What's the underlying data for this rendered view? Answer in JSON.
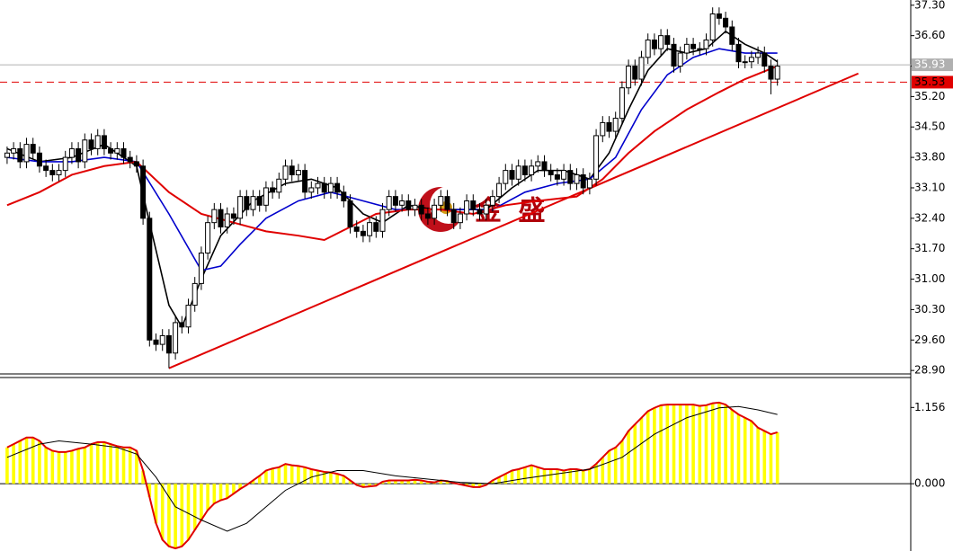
{
  "chart_data": [
    {
      "type": "candlestick",
      "xlim": [
        -1.1,
        139.6
      ],
      "ylim": [
        28.82,
        37.42
      ],
      "yticks": [
        {
          "value": 37.3,
          "label": "37.30"
        },
        {
          "value": 36.6,
          "label": "36.60"
        },
        {
          "value": 35.9,
          "label": "35.90"
        },
        {
          "value": 35.2,
          "label": "35.20"
        },
        {
          "value": 34.5,
          "label": "34.50"
        },
        {
          "value": 33.8,
          "label": "33.80"
        },
        {
          "value": 33.1,
          "label": "33.10"
        },
        {
          "value": 32.4,
          "label": "32.40"
        },
        {
          "value": 31.7,
          "label": "31.70"
        },
        {
          "value": 31,
          "label": "31.00"
        },
        {
          "value": 30.3,
          "label": "30.30"
        },
        {
          "value": 29.6,
          "label": "29.60"
        },
        {
          "value": 28.9,
          "label": "28.90"
        }
      ],
      "up_color": "#ffffff",
      "down_color": "#000000",
      "candles": [
        [
          33.8,
          34.05,
          33.65,
          33.9
        ],
        [
          33.9,
          34.15,
          33.75,
          34.0
        ],
        [
          34.0,
          34.15,
          33.55,
          33.7
        ],
        [
          33.7,
          34.25,
          33.55,
          34.1
        ],
        [
          34.1,
          34.25,
          33.75,
          33.9
        ],
        [
          33.9,
          34.05,
          33.45,
          33.6
        ],
        [
          33.6,
          33.75,
          33.35,
          33.5
        ],
        [
          33.5,
          33.65,
          33.25,
          33.4
        ],
        [
          33.4,
          33.65,
          33.25,
          33.5
        ],
        [
          33.5,
          33.95,
          33.35,
          33.8
        ],
        [
          33.8,
          34.15,
          33.65,
          34.0
        ],
        [
          34.0,
          34.15,
          33.55,
          33.7
        ],
        [
          33.7,
          34.35,
          33.55,
          34.2
        ],
        [
          34.2,
          34.35,
          33.85,
          34.0
        ],
        [
          34.0,
          34.45,
          33.85,
          34.3
        ],
        [
          34.3,
          34.45,
          33.85,
          34.0
        ],
        [
          34.0,
          34.15,
          33.75,
          33.9
        ],
        [
          33.9,
          34.15,
          33.75,
          34.0
        ],
        [
          34.0,
          34.15,
          33.65,
          33.8
        ],
        [
          33.8,
          33.95,
          33.55,
          33.7
        ],
        [
          33.7,
          33.85,
          33.45,
          33.6
        ],
        [
          33.6,
          33.75,
          32.25,
          32.4
        ],
        [
          32.4,
          32.55,
          29.45,
          29.6
        ],
        [
          29.6,
          29.75,
          29.35,
          29.5
        ],
        [
          29.5,
          29.85,
          29.35,
          29.7
        ],
        [
          29.7,
          29.85,
          28.95,
          29.3
        ],
        [
          29.3,
          30.15,
          29.15,
          30.0
        ],
        [
          30.0,
          30.15,
          29.75,
          29.9
        ],
        [
          29.9,
          30.55,
          29.75,
          30.4
        ],
        [
          30.4,
          31.05,
          30.25,
          30.9
        ],
        [
          30.9,
          31.75,
          30.75,
          31.6
        ],
        [
          31.6,
          32.45,
          31.45,
          32.3
        ],
        [
          32.3,
          32.75,
          32.15,
          32.6
        ],
        [
          32.6,
          32.75,
          32.05,
          32.2
        ],
        [
          32.2,
          32.65,
          32.05,
          32.5
        ],
        [
          32.5,
          32.65,
          32.25,
          32.4
        ],
        [
          32.4,
          33.05,
          32.25,
          32.9
        ],
        [
          32.9,
          33.05,
          32.45,
          32.6
        ],
        [
          32.6,
          33.05,
          32.45,
          32.9
        ],
        [
          32.9,
          33.05,
          32.55,
          32.7
        ],
        [
          32.7,
          33.25,
          32.55,
          33.1
        ],
        [
          33.1,
          33.25,
          32.85,
          33.0
        ],
        [
          33.0,
          33.45,
          32.85,
          33.3
        ],
        [
          33.3,
          33.75,
          33.15,
          33.6
        ],
        [
          33.6,
          33.75,
          33.25,
          33.4
        ],
        [
          33.4,
          33.65,
          33.25,
          33.5
        ],
        [
          33.5,
          33.65,
          32.85,
          33.0
        ],
        [
          33.0,
          33.25,
          32.85,
          33.1
        ],
        [
          33.1,
          33.35,
          32.95,
          33.2
        ],
        [
          33.2,
          33.35,
          32.85,
          33.0
        ],
        [
          33.0,
          33.35,
          32.85,
          33.2
        ],
        [
          33.2,
          33.35,
          32.85,
          33.0
        ],
        [
          33.0,
          33.15,
          32.65,
          32.8
        ],
        [
          32.8,
          32.95,
          32.05,
          32.2
        ],
        [
          32.2,
          32.35,
          31.95,
          32.1
        ],
        [
          32.1,
          32.25,
          31.85,
          32.0
        ],
        [
          32.0,
          32.45,
          31.85,
          32.3
        ],
        [
          32.3,
          32.45,
          31.95,
          32.1
        ],
        [
          32.1,
          32.75,
          31.95,
          32.6
        ],
        [
          32.6,
          33.05,
          32.45,
          32.9
        ],
        [
          32.9,
          33.05,
          32.55,
          32.7
        ],
        [
          32.7,
          32.95,
          32.55,
          32.8
        ],
        [
          32.8,
          32.95,
          32.45,
          32.6
        ],
        [
          32.6,
          32.85,
          32.45,
          32.7
        ],
        [
          32.7,
          32.85,
          32.35,
          32.5
        ],
        [
          32.5,
          32.65,
          32.25,
          32.4
        ],
        [
          32.4,
          32.85,
          32.25,
          32.7
        ],
        [
          32.7,
          33.05,
          32.55,
          32.9
        ],
        [
          32.9,
          33.05,
          32.45,
          32.6
        ],
        [
          32.6,
          32.75,
          32.15,
          32.3
        ],
        [
          32.3,
          32.65,
          32.15,
          32.5
        ],
        [
          32.5,
          32.95,
          32.35,
          32.8
        ],
        [
          32.8,
          32.95,
          32.45,
          32.6
        ],
        [
          32.6,
          32.75,
          32.35,
          32.5
        ],
        [
          32.5,
          32.85,
          32.35,
          32.7
        ],
        [
          32.7,
          33.05,
          32.55,
          32.9
        ],
        [
          32.9,
          33.35,
          32.75,
          33.2
        ],
        [
          33.2,
          33.65,
          33.05,
          33.5
        ],
        [
          33.5,
          33.65,
          33.15,
          33.3
        ],
        [
          33.3,
          33.75,
          33.15,
          33.6
        ],
        [
          33.6,
          33.75,
          33.25,
          33.4
        ],
        [
          33.4,
          33.75,
          33.25,
          33.6
        ],
        [
          33.6,
          33.85,
          33.45,
          33.7
        ],
        [
          33.7,
          33.85,
          33.35,
          33.5
        ],
        [
          33.5,
          33.65,
          33.25,
          33.4
        ],
        [
          33.4,
          33.55,
          33.15,
          33.3
        ],
        [
          33.3,
          33.65,
          33.15,
          33.5
        ],
        [
          33.5,
          33.65,
          33.05,
          33.2
        ],
        [
          33.2,
          33.55,
          33.05,
          33.4
        ],
        [
          33.4,
          33.55,
          32.95,
          33.1
        ],
        [
          33.1,
          33.45,
          32.95,
          33.3
        ],
        [
          33.3,
          34.45,
          33.15,
          34.3
        ],
        [
          34.3,
          34.75,
          34.15,
          34.6
        ],
        [
          34.6,
          34.75,
          34.25,
          34.4
        ],
        [
          34.4,
          34.85,
          34.25,
          34.7
        ],
        [
          34.7,
          35.55,
          34.55,
          35.4
        ],
        [
          35.4,
          36.05,
          35.25,
          35.9
        ],
        [
          35.9,
          36.05,
          35.45,
          35.6
        ],
        [
          35.6,
          36.25,
          35.45,
          36.1
        ],
        [
          36.1,
          36.65,
          35.95,
          36.5
        ],
        [
          36.5,
          36.65,
          36.15,
          36.3
        ],
        [
          36.3,
          36.75,
          36.15,
          36.6
        ],
        [
          36.6,
          36.75,
          36.25,
          36.4
        ],
        [
          36.4,
          36.55,
          35.75,
          35.9
        ],
        [
          35.9,
          36.35,
          35.75,
          36.2
        ],
        [
          36.2,
          36.55,
          36.05,
          36.4
        ],
        [
          36.4,
          36.55,
          36.15,
          36.3
        ],
        [
          36.3,
          36.45,
          36.15,
          36.3
        ],
        [
          36.3,
          36.65,
          36.15,
          36.5
        ],
        [
          36.5,
          37.25,
          36.35,
          37.1
        ],
        [
          37.1,
          37.25,
          36.85,
          37.0
        ],
        [
          37.0,
          37.15,
          36.65,
          36.8
        ],
        [
          36.8,
          36.95,
          36.25,
          36.4
        ],
        [
          36.4,
          36.55,
          35.85,
          36.0
        ],
        [
          36.0,
          36.15,
          35.85,
          36.0
        ],
        [
          36.0,
          36.25,
          35.85,
          36.1
        ],
        [
          36.1,
          36.35,
          35.95,
          36.2
        ],
        [
          36.2,
          36.35,
          35.75,
          35.9
        ],
        [
          35.9,
          36.05,
          35.25,
          35.6
        ],
        [
          35.6,
          36.05,
          35.45,
          35.9
        ]
      ],
      "lines": [
        {
          "color": "#000000",
          "x": [
            0,
            5,
            10,
            15,
            20,
            22,
            25,
            27,
            30,
            33,
            38,
            43,
            47,
            51,
            55,
            58,
            62,
            66,
            70,
            74,
            78,
            82,
            86,
            90,
            93,
            96,
            99,
            102,
            105,
            108,
            111,
            114,
            117,
            119
          ],
          "values": [
            34.0,
            33.7,
            33.8,
            34.1,
            33.6,
            32.3,
            30.4,
            29.9,
            31.0,
            32.0,
            32.8,
            33.2,
            33.3,
            33.1,
            32.5,
            32.3,
            32.7,
            32.6,
            32.6,
            32.6,
            33.1,
            33.5,
            33.5,
            33.3,
            33.9,
            34.9,
            35.8,
            36.3,
            36.2,
            36.3,
            36.7,
            36.4,
            36.2,
            36.0
          ]
        },
        {
          "color": "#0000cc",
          "x": [
            0,
            5,
            10,
            15,
            20,
            25,
            30,
            33,
            36,
            40,
            45,
            50,
            55,
            60,
            65,
            70,
            75,
            80,
            85,
            90,
            94,
            98,
            102,
            106,
            110,
            114,
            119
          ],
          "values": [
            33.8,
            33.7,
            33.7,
            33.8,
            33.7,
            32.5,
            31.2,
            31.3,
            31.8,
            32.4,
            32.8,
            33.0,
            32.8,
            32.6,
            32.6,
            32.6,
            32.6,
            33.0,
            33.2,
            33.3,
            33.8,
            34.9,
            35.7,
            36.1,
            36.3,
            36.2,
            36.2
          ]
        },
        {
          "color": "#e00000",
          "x": [
            0,
            5,
            10,
            15,
            20,
            25,
            30,
            35,
            40,
            45,
            49,
            53,
            57,
            62,
            67,
            72,
            77,
            82,
            88,
            92,
            96,
            100,
            105,
            110,
            114,
            119
          ],
          "values": [
            32.7,
            33.0,
            33.4,
            33.6,
            33.7,
            33.0,
            32.5,
            32.3,
            32.1,
            32.0,
            31.9,
            32.2,
            32.5,
            32.6,
            32.6,
            32.5,
            32.7,
            32.8,
            32.9,
            33.3,
            33.9,
            34.4,
            34.9,
            35.3,
            35.6,
            35.9
          ]
        }
      ],
      "trendline": {
        "color": "#e00000",
        "x": [
          25,
          131.5
        ],
        "values": [
          28.95,
          35.73
        ]
      },
      "levels": [
        {
          "value": 35.93,
          "color": "#b0b0b0",
          "text_color": "#ffffff",
          "dashed": false
        },
        {
          "value": 35.53,
          "color": "#e00000",
          "text_color": "#000000",
          "dashed": true
        }
      ],
      "watermark": "金 盛"
    },
    {
      "type": "macd",
      "xlim": [
        -1.1,
        139.6
      ],
      "ylim": [
        -1.02,
        1.61
      ],
      "yticks": [
        1.156,
        {
          "value": 0,
          "label": "0.000"
        }
      ],
      "histogram_color": "#ffff00",
      "outline_color": "#e00000",
      "values": [
        0.55,
        0.6,
        0.65,
        0.7,
        0.7,
        0.65,
        0.55,
        0.5,
        0.48,
        0.48,
        0.5,
        0.53,
        0.55,
        0.6,
        0.63,
        0.63,
        0.6,
        0.57,
        0.55,
        0.55,
        0.5,
        0.2,
        -0.2,
        -0.6,
        -0.85,
        -0.95,
        -0.98,
        -0.95,
        -0.85,
        -0.7,
        -0.55,
        -0.4,
        -0.3,
        -0.25,
        -0.22,
        -0.15,
        -0.08,
        -0.02,
        0.05,
        0.12,
        0.2,
        0.23,
        0.25,
        0.3,
        0.28,
        0.27,
        0.25,
        0.22,
        0.2,
        0.18,
        0.17,
        0.15,
        0.12,
        0.05,
        -0.02,
        -0.05,
        -0.04,
        -0.03,
        0.03,
        0.05,
        0.05,
        0.05,
        0.05,
        0.06,
        0.05,
        0.03,
        0.02,
        0.05,
        0.04,
        0.01,
        -0.01,
        -0.03,
        -0.05,
        -0.05,
        -0.02,
        0.05,
        0.1,
        0.15,
        0.2,
        0.22,
        0.25,
        0.28,
        0.25,
        0.22,
        0.22,
        0.22,
        0.2,
        0.22,
        0.22,
        0.2,
        0.22,
        0.3,
        0.4,
        0.5,
        0.55,
        0.65,
        0.8,
        0.9,
        1.0,
        1.1,
        1.15,
        1.19,
        1.2,
        1.2,
        1.2,
        1.2,
        1.2,
        1.18,
        1.19,
        1.22,
        1.23,
        1.2,
        1.12,
        1.05,
        1.0,
        0.95,
        0.85,
        0.8,
        0.75,
        0.78
      ],
      "signal": {
        "color": "#000000",
        "x": [
          0,
          5,
          8,
          13,
          17,
          20,
          23,
          26,
          30,
          34,
          37,
          40,
          43,
          47,
          51,
          55,
          60,
          65,
          70,
          75,
          80,
          85,
          90,
          95,
          100,
          105,
          110,
          113,
          116,
          119
        ],
        "values": [
          0.4,
          0.6,
          0.65,
          0.6,
          0.55,
          0.45,
          0.1,
          -0.35,
          -0.55,
          -0.72,
          -0.6,
          -0.35,
          -0.1,
          0.1,
          0.2,
          0.2,
          0.12,
          0.07,
          0.02,
          0.0,
          0.08,
          0.15,
          0.22,
          0.4,
          0.75,
          1.0,
          1.15,
          1.17,
          1.12,
          1.05
        ]
      }
    }
  ]
}
